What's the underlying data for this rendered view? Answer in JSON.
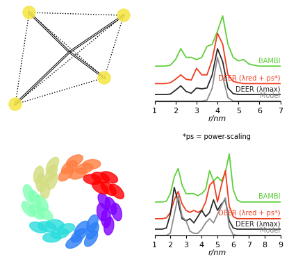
{
  "chart_data": [
    {
      "type": "line",
      "x": [
        1.0,
        1.25,
        1.5,
        1.75,
        2.0,
        2.25,
        2.5,
        2.75,
        3.0,
        3.25,
        3.5,
        3.75,
        4.0,
        4.25,
        4.5,
        4.75,
        5.0,
        5.25,
        5.5,
        5.75,
        6.0,
        6.25,
        6.5,
        6.75,
        7.0
      ],
      "series": [
        {
          "name": "BAMBI",
          "color": "#5fcf3a",
          "values": [
            0.8,
            0.8,
            0.8,
            0.82,
            0.95,
            1.2,
            1.0,
            1.0,
            0.95,
            1.0,
            1.25,
            1.3,
            1.6,
            1.95,
            1.3,
            1.0,
            0.92,
            0.95,
            0.85,
            0.82,
            0.8,
            0.8,
            0.8,
            0.8,
            0.8
          ]
        },
        {
          "name": "DEER (λred + ps*)",
          "color": "#f03c1e",
          "values": [
            0.4,
            0.4,
            0.4,
            0.42,
            0.5,
            0.6,
            0.5,
            0.48,
            0.75,
            0.6,
            0.6,
            0.95,
            1.55,
            1.3,
            0.6,
            0.45,
            0.42,
            0.4,
            0.4,
            0.4,
            0.4,
            0.4,
            0.4,
            0.4,
            0.4
          ]
        },
        {
          "name": "DEER (λmax)",
          "color": "#2a2a2a",
          "values": [
            0.15,
            0.15,
            0.15,
            0.16,
            0.25,
            0.35,
            0.22,
            0.18,
            0.3,
            0.28,
            0.3,
            0.6,
            1.2,
            0.9,
            0.3,
            0.17,
            0.15,
            0.15,
            0.15,
            0.15,
            0.15,
            0.15,
            0.15,
            0.15,
            0.15
          ]
        },
        {
          "name": "Model",
          "color": "#8c8c8c",
          "values": [
            0,
            0,
            0,
            0,
            0,
            0,
            0,
            0,
            0,
            0,
            0.02,
            0.3,
            1.0,
            0.55,
            0.08,
            0,
            0,
            0,
            0,
            0,
            0,
            0,
            0,
            0,
            0
          ]
        }
      ],
      "x_label": "r/nm",
      "xlim": [
        1,
        7
      ],
      "xticks": [
        1,
        2,
        3,
        4,
        5,
        6,
        7
      ],
      "ylim": [
        0,
        2.1
      ],
      "tick_labels": "x",
      "annotation": "*ps = power-scaling"
    },
    {
      "type": "line",
      "x": [
        1.0,
        1.25,
        1.5,
        1.75,
        2.0,
        2.25,
        2.5,
        2.75,
        3.0,
        3.25,
        3.5,
        3.75,
        4.0,
        4.25,
        4.5,
        4.75,
        5.0,
        5.25,
        5.5,
        5.75,
        6.0,
        6.25,
        6.5,
        6.75,
        7.0,
        7.25,
        7.5,
        7.75,
        8.0,
        8.25,
        8.5,
        8.75,
        9.0
      ],
      "series": [
        {
          "name": "BAMBI",
          "color": "#5fcf3a",
          "values": [
            0.8,
            0.8,
            0.8,
            0.82,
            1.0,
            1.4,
            1.6,
            1.2,
            1.0,
            1.0,
            1.0,
            0.95,
            1.0,
            1.1,
            1.55,
            1.3,
            1.4,
            1.3,
            1.5,
            1.95,
            1.1,
            0.85,
            0.8,
            0.8,
            0.8,
            0.8,
            0.8,
            0.8,
            0.8,
            0.8,
            0.8,
            0.8,
            0.8
          ]
        },
        {
          "name": "DEER (λred + ps*)",
          "color": "#f03c1e",
          "values": [
            0.4,
            0.4,
            0.4,
            0.42,
            0.55,
            0.85,
            1.05,
            0.75,
            0.6,
            0.55,
            0.6,
            0.55,
            0.6,
            0.8,
            1.2,
            1.3,
            0.8,
            1.2,
            1.55,
            0.7,
            0.45,
            0.4,
            0.4,
            0.4,
            0.4,
            0.4,
            0.4,
            0.4,
            0.4,
            0.4,
            0.4,
            0.4,
            0.4
          ]
        },
        {
          "name": "DEER (λmax)",
          "color": "#2a2a2a",
          "values": [
            0.15,
            0.15,
            0.15,
            0.18,
            0.5,
            1.15,
            0.8,
            0.4,
            0.35,
            0.4,
            0.3,
            0.45,
            0.6,
            0.45,
            0.55,
            0.85,
            0.6,
            0.75,
            0.85,
            0.35,
            0.18,
            0.15,
            0.15,
            0.15,
            0.15,
            0.15,
            0.15,
            0.15,
            0.15,
            0.15,
            0.15,
            0.15,
            0.15
          ]
        },
        {
          "name": "Model",
          "color": "#8c8c8c",
          "values": [
            0,
            0,
            0,
            0,
            0.05,
            0.5,
            0.95,
            0.45,
            0.35,
            0.1,
            0.05,
            0.05,
            0.15,
            0.3,
            0.4,
            0.3,
            0.5,
            0.7,
            0.9,
            0.2,
            0.02,
            0,
            0,
            0,
            0,
            0,
            0,
            0,
            0,
            0,
            0,
            0,
            0
          ]
        }
      ],
      "x_label": "r/nm",
      "xlim": [
        1,
        9
      ],
      "xticks": [
        1,
        2,
        3,
        4,
        5,
        6,
        7,
        8,
        9
      ],
      "ylim": [
        0,
        2.1
      ],
      "tick_labels": "x"
    }
  ]
}
